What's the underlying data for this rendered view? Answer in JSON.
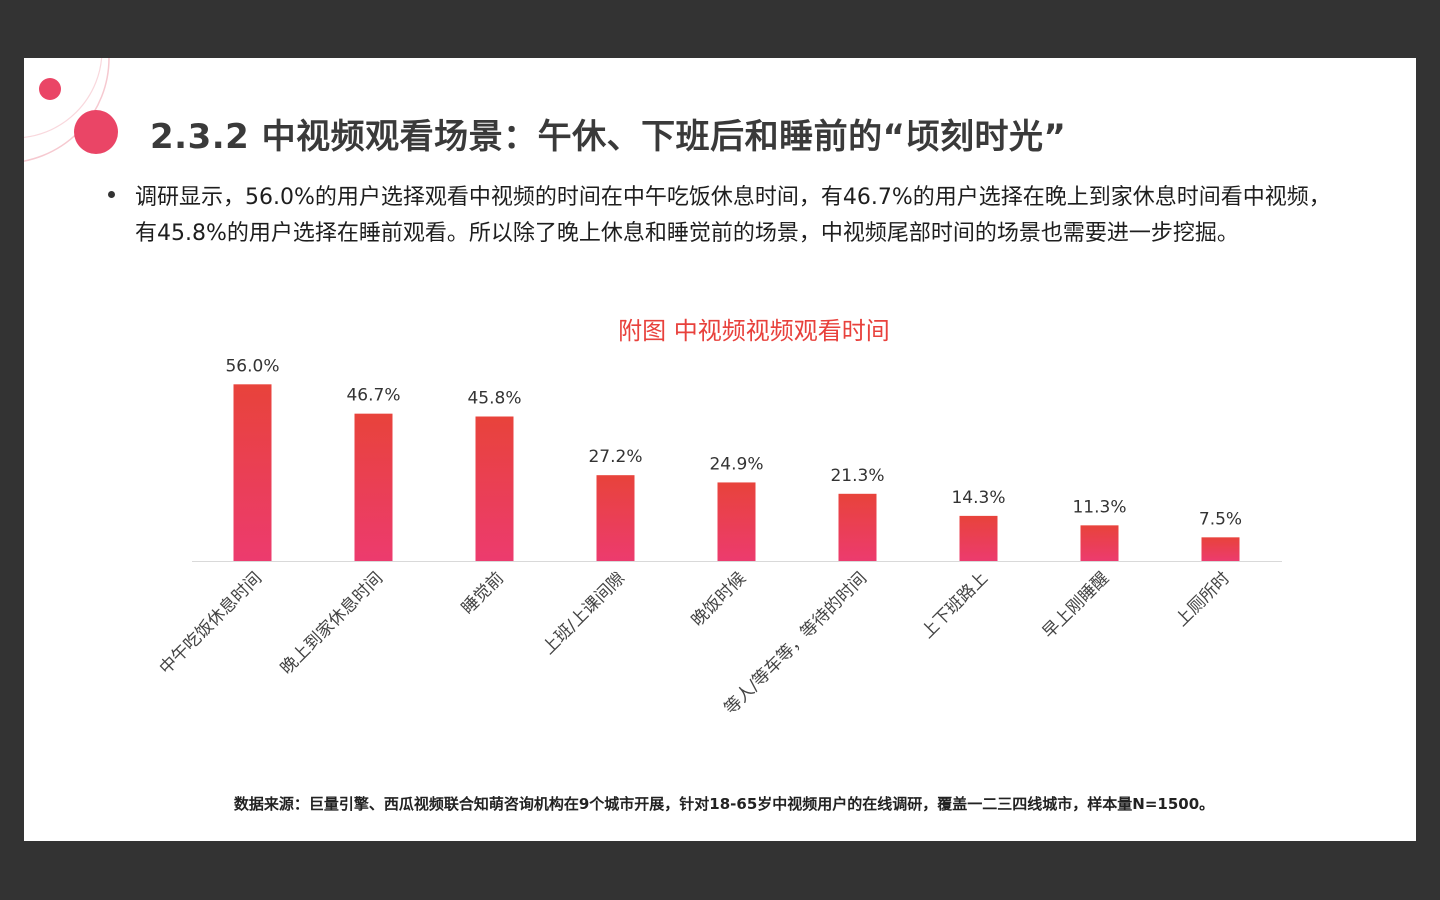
{
  "header": {
    "title": "2.3.2  中视频观看场景：午休、下班后和睡前的“顷刻时光”"
  },
  "body": {
    "bullet": "调研显示，56.0%的用户选择观看中视频的时间在中午吃饭休息时间，有46.7%的用户选择在晚上到家休息时间看中视频，有45.8%的用户选择在睡前观看。所以除了晚上休息和睡觉前的场景，中视频尾部时间的场景也需要进一步挖掘。"
  },
  "colors": {
    "bar_top": "#e8433b",
    "bar_bottom": "#ec3b6e",
    "accent": "#e8413c",
    "deco_line": "#f6c9d0"
  },
  "chart_data": {
    "type": "bar",
    "title": "附图 中视频视频观看时间",
    "categories": [
      "中午吃饭休息时间",
      "晚上到家休息时间",
      "睡觉前",
      "上班/上课间隙",
      "晚饭时候",
      "等人/等车等，等待的时间",
      "上下班路上",
      "早上刚睡醒",
      "上厕所时"
    ],
    "values": [
      56.0,
      46.7,
      45.8,
      27.2,
      24.9,
      21.3,
      14.3,
      11.3,
      7.5
    ],
    "value_labels": [
      "56.0%",
      "46.7%",
      "45.8%",
      "27.2%",
      "24.9%",
      "21.3%",
      "14.3%",
      "11.3%",
      "7.5%"
    ],
    "unit": "%",
    "ylim": [
      0,
      60
    ],
    "grid": false,
    "legend": "none"
  },
  "footer": {
    "source": "数据来源：巨量引擎、西瓜视频联合知萌咨询机构在9个城市开展，针对18-65岁中视频用户的在线调研，覆盖一二三四线城市，样本量N=1500。"
  }
}
